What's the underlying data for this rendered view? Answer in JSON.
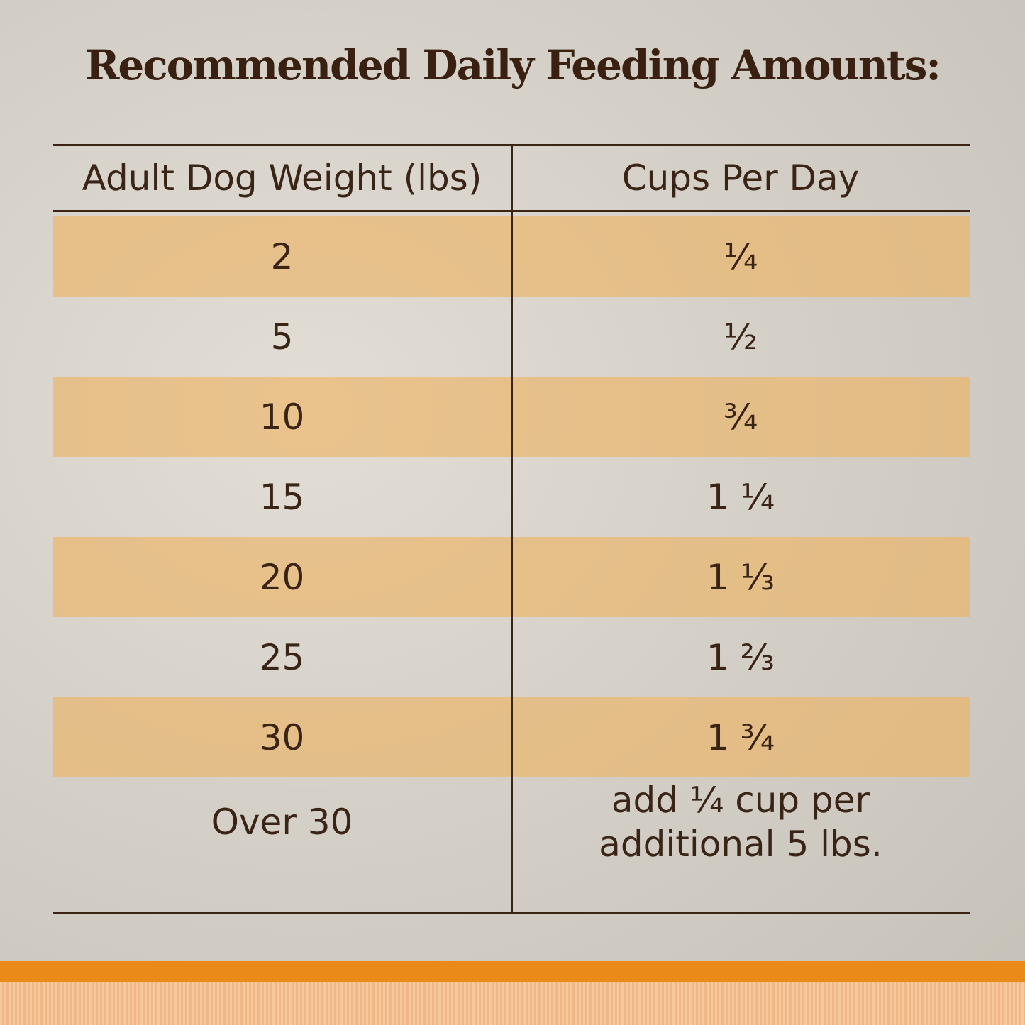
{
  "title": "Recommended Daily Feeding Amounts:",
  "table": {
    "header": [
      "Adult Dog Weight (lbs)",
      "Cups Per Day"
    ],
    "rows": [
      [
        "2",
        "¼"
      ],
      [
        "5",
        "½"
      ],
      [
        "10",
        "¾"
      ],
      [
        "15",
        "1 ¼"
      ],
      [
        "20",
        "1 ⅓"
      ],
      [
        "25",
        "1 ⅔"
      ],
      [
        "30",
        "1 ¾"
      ],
      [
        "Over 30",
        [
          "add ¼ cup per",
          "additional 5 lbs."
        ]
      ]
    ]
  }
}
